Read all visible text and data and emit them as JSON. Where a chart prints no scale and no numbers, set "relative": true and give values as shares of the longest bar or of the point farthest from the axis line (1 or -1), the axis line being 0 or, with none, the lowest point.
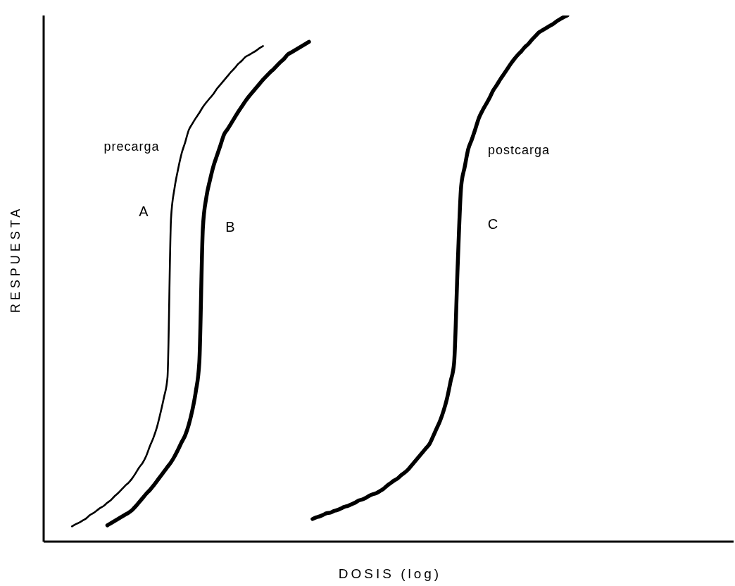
{
  "chart_data": {
    "type": "line",
    "xlabel": "DOSIS (log)",
    "ylabel": "RESPUESTA",
    "relative": true,
    "categories": [
      null,
      null,
      null,
      null,
      null,
      null,
      null,
      null,
      null,
      null,
      null,
      null,
      null,
      null,
      null,
      null,
      null,
      null,
      null,
      null,
      null,
      null,
      null,
      null,
      null,
      null,
      null,
      null,
      null,
      null,
      null,
      null,
      null,
      null,
      null,
      null,
      null,
      null,
      null,
      null,
      null,
      null,
      null,
      null,
      null,
      null,
      null,
      null,
      null,
      null,
      null,
      null,
      null,
      null,
      null,
      null,
      null,
      null,
      null,
      null,
      null,
      null,
      null,
      null,
      null,
      null,
      null,
      null,
      null,
      null,
      null,
      null,
      null,
      null,
      null,
      null,
      null,
      null,
      null,
      null,
      null,
      null,
      null,
      null,
      null,
      null,
      null,
      null,
      null,
      null,
      null,
      null,
      null,
      null,
      null,
      null,
      null,
      null,
      null,
      null,
      null,
      null,
      null,
      null,
      null,
      null,
      null,
      null,
      null,
      null,
      null,
      null,
      null,
      null,
      null,
      null,
      null,
      null,
      null,
      null,
      null,
      null,
      null,
      null,
      null,
      null,
      null,
      null,
      null,
      null,
      null,
      null,
      null,
      null,
      null,
      null,
      null,
      null,
      null,
      null,
      null,
      null,
      null,
      null,
      null,
      null,
      null,
      null,
      null,
      null,
      null,
      null,
      null,
      null,
      null,
      null,
      null,
      null,
      null,
      null,
      null,
      null,
      null,
      null,
      null,
      null,
      null,
      null,
      null,
      null,
      null,
      null,
      null,
      null,
      null,
      null,
      null,
      null,
      null,
      null,
      null,
      null,
      null,
      null,
      null,
      null,
      null,
      null,
      null,
      null,
      null,
      null,
      null,
      null,
      null,
      null
    ],
    "series": [
      {
        "name": "A",
        "color": "#000000",
        "values": [
          null,
          null,
          null,
          null,
          null,
          null,
          null,
          null,
          0.029,
          0.033,
          0.036,
          0.04,
          0.044,
          0.05,
          0.054,
          0.059,
          0.064,
          0.068,
          0.074,
          0.079,
          0.086,
          0.092,
          0.099,
          0.106,
          0.112,
          0.12,
          0.13,
          0.141,
          0.15,
          0.163,
          0.181,
          0.197,
          0.217,
          0.244,
          0.274,
          0.312,
          0.614,
          0.672,
          0.708,
          0.738,
          0.759,
          0.782,
          0.794,
          0.805,
          0.815,
          0.826,
          0.835,
          0.843,
          0.851,
          0.861,
          0.869,
          0.877,
          0.885,
          0.893,
          0.9,
          0.908,
          0.914,
          0.921,
          0.925,
          0.929,
          0.933,
          0.938,
          0.942,
          null,
          null,
          null,
          null,
          null,
          null,
          null,
          null,
          null,
          null,
          null,
          null,
          null,
          null,
          null,
          null,
          null,
          null,
          null,
          null,
          null,
          null,
          null,
          null,
          null,
          null,
          null,
          null,
          null,
          null,
          null,
          null,
          null,
          null,
          null,
          null,
          null,
          null,
          null,
          null,
          null,
          null,
          null,
          null,
          null,
          null,
          null,
          null,
          null,
          null,
          null,
          null,
          null,
          null,
          null,
          null,
          null,
          null,
          null,
          null,
          null,
          null,
          null,
          null,
          null,
          null,
          null,
          null,
          null,
          null,
          null,
          null,
          null,
          null,
          null,
          null,
          null,
          null,
          null,
          null,
          null,
          null,
          null,
          null,
          null,
          null,
          null,
          null,
          null,
          null,
          null,
          null,
          null,
          null,
          null,
          null,
          null,
          null,
          null,
          null,
          null,
          null,
          null,
          null,
          null,
          null,
          null,
          null,
          null,
          null,
          null,
          null,
          null,
          null,
          null,
          null,
          null,
          null,
          null,
          null,
          null,
          null,
          null,
          null,
          null,
          null,
          null,
          null,
          null,
          null,
          null,
          null,
          null
        ]
      },
      {
        "name": "B",
        "color": "#000000",
        "values": [
          null,
          null,
          null,
          null,
          null,
          null,
          null,
          null,
          null,
          null,
          null,
          null,
          null,
          null,
          null,
          null,
          null,
          null,
          0.031,
          0.035,
          0.039,
          0.043,
          0.047,
          0.051,
          0.055,
          0.06,
          0.067,
          0.075,
          0.083,
          0.091,
          0.098,
          0.106,
          0.115,
          0.124,
          0.133,
          0.142,
          0.151,
          0.162,
          0.175,
          0.189,
          0.202,
          0.222,
          0.249,
          0.285,
          0.341,
          0.596,
          0.655,
          0.687,
          0.714,
          0.734,
          0.754,
          0.774,
          0.784,
          0.795,
          0.806,
          0.817,
          0.827,
          0.837,
          0.846,
          0.854,
          0.862,
          0.87,
          0.878,
          0.885,
          0.892,
          0.898,
          0.905,
          0.912,
          0.918,
          0.926,
          0.93,
          0.934,
          0.938,
          0.942,
          0.946,
          0.95,
          null,
          null,
          null,
          null,
          null,
          null,
          null,
          null,
          null,
          null,
          null,
          null,
          null,
          null,
          null,
          null,
          null,
          null,
          null,
          null,
          null,
          null,
          null,
          null,
          null,
          null,
          null,
          null,
          null,
          null,
          null,
          null,
          null,
          null,
          null,
          null,
          null,
          null,
          null,
          null,
          null,
          null,
          null,
          null,
          null,
          null,
          null,
          null,
          null,
          null,
          null,
          null,
          null,
          null,
          null,
          null,
          null,
          null,
          null,
          null,
          null,
          null,
          null,
          null,
          null,
          null,
          null,
          null,
          null,
          null,
          null,
          null,
          null,
          null,
          null,
          null,
          null,
          null,
          null,
          null,
          null,
          null,
          null,
          null,
          null,
          null,
          null,
          null,
          null,
          null,
          null,
          null,
          null,
          null,
          null,
          null,
          null,
          null,
          null,
          null,
          null,
          null,
          null,
          null,
          null,
          null,
          null,
          null,
          null,
          null,
          null,
          null,
          null,
          null,
          null,
          null,
          null,
          null,
          null,
          null
        ]
      },
      {
        "name": "C",
        "color": "#000000",
        "values": [
          null,
          null,
          null,
          null,
          null,
          null,
          null,
          null,
          null,
          null,
          null,
          null,
          null,
          null,
          null,
          null,
          null,
          null,
          null,
          null,
          null,
          null,
          null,
          null,
          null,
          null,
          null,
          null,
          null,
          null,
          null,
          null,
          null,
          null,
          null,
          null,
          null,
          null,
          null,
          null,
          null,
          null,
          null,
          null,
          null,
          null,
          null,
          null,
          null,
          null,
          null,
          null,
          null,
          null,
          null,
          null,
          null,
          null,
          null,
          null,
          null,
          null,
          null,
          null,
          null,
          null,
          null,
          null,
          null,
          null,
          null,
          null,
          null,
          null,
          null,
          null,
          0.043,
          0.046,
          0.048,
          0.051,
          0.054,
          0.055,
          0.058,
          0.06,
          0.063,
          0.066,
          0.068,
          0.071,
          0.074,
          0.078,
          0.08,
          0.083,
          0.087,
          0.09,
          0.092,
          0.096,
          0.1,
          0.106,
          0.111,
          0.116,
          0.12,
          0.126,
          0.131,
          0.137,
          0.145,
          0.153,
          0.161,
          0.169,
          0.177,
          0.185,
          0.199,
          0.214,
          0.229,
          0.248,
          0.272,
          0.304,
          0.339,
          0.521,
          0.675,
          0.712,
          0.746,
          0.764,
          0.784,
          0.805,
          0.819,
          0.831,
          0.843,
          0.857,
          0.867,
          0.878,
          0.888,
          0.898,
          0.908,
          0.917,
          0.925,
          0.932,
          0.94,
          0.946,
          0.954,
          0.961,
          0.968,
          0.972,
          0.976,
          0.98,
          0.984,
          0.989,
          0.993,
          0.997,
          1.0,
          null,
          null,
          null,
          null,
          null,
          null,
          null,
          null,
          null,
          null,
          null,
          null,
          null,
          null,
          null,
          null,
          null,
          null,
          null,
          null,
          null,
          null,
          null,
          null,
          null,
          null,
          null,
          null,
          null,
          null,
          null,
          null,
          null,
          null,
          null,
          null,
          null,
          null,
          null,
          null,
          null,
          null,
          null,
          null,
          null,
          null,
          null
        ]
      }
    ],
    "annotations": [
      "precarga",
      "postcarga"
    ]
  }
}
